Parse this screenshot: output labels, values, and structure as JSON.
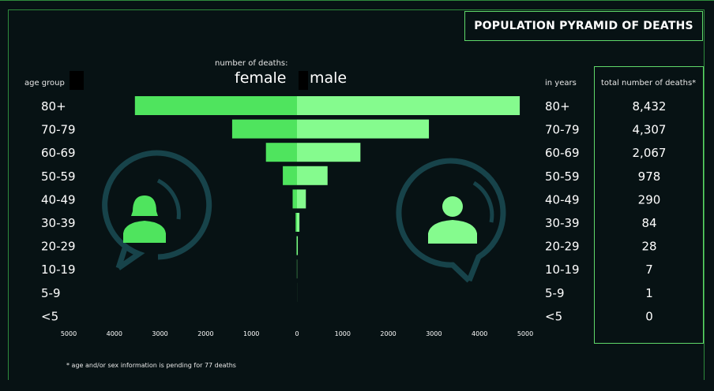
{
  "title": "POPULATION PYRAMID OF DEATHS",
  "header": {
    "number_of_deaths": "number of deaths:",
    "female": "female",
    "male": "male",
    "age_group": "age group",
    "in_years": "in years",
    "total_header": "total number of deaths*"
  },
  "footnote": "* age and/or sex information is pending for 77 deaths",
  "colors": {
    "female": "#4fe45e",
    "male": "#85fb8e",
    "icon_ring": "#17434a",
    "border": "#5fd86a"
  },
  "icons": {
    "female": "female-person-icon",
    "male": "male-person-icon"
  },
  "chart_data": {
    "type": "bar",
    "orientation": "horizontal-pyramid",
    "categories": [
      "80+",
      "70-79",
      "60-69",
      "50-59",
      "40-49",
      "30-39",
      "20-29",
      "10-19",
      "5-9",
      "<5"
    ],
    "series": [
      {
        "name": "female",
        "values": [
          3550,
          1420,
          680,
          310,
          95,
          30,
          10,
          3,
          0,
          0
        ]
      },
      {
        "name": "male",
        "values": [
          4880,
          2890,
          1390,
          670,
          195,
          54,
          18,
          4,
          1,
          0
        ]
      }
    ],
    "totals": [
      "8,432",
      "4,307",
      "2,067",
      "978",
      "290",
      "84",
      "28",
      "7",
      "1",
      "0"
    ],
    "xlim": [
      -5000,
      5000
    ],
    "x_tick_labels": [
      "5000",
      "4000",
      "3000",
      "2000",
      "1000",
      "0",
      "1000",
      "2000",
      "3000",
      "4000",
      "5000"
    ],
    "legend": "top-center"
  }
}
